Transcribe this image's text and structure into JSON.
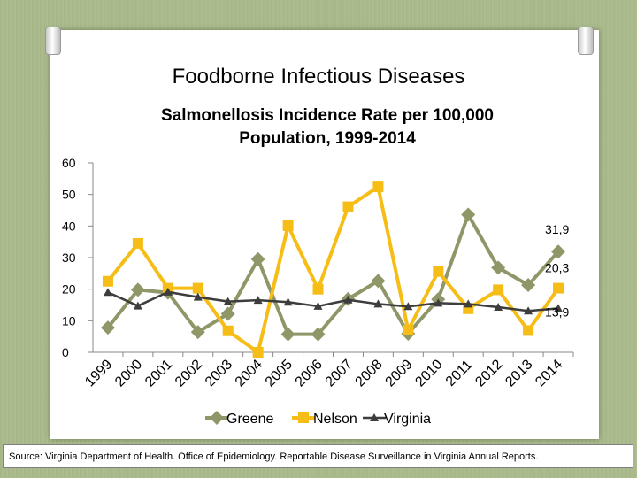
{
  "title": "Foodborne Infectious Diseases",
  "colors": {
    "greene": "#8f9668",
    "nelson": "#f6bd16",
    "virginia": "#3d3d3d",
    "axis": "#888888"
  },
  "chart_data": {
    "type": "line",
    "title": "Salmonellosis Incidence Rate per 100,000\nPopulation, 1999-2014",
    "xlabel": "",
    "ylabel": "",
    "ylim": [
      0,
      60
    ],
    "yticks": [
      "0",
      "10",
      "20",
      "30",
      "40",
      "50",
      "60"
    ],
    "categories": [
      "1999",
      "2000",
      "2001",
      "2002",
      "2003",
      "2004",
      "2005",
      "2006",
      "2007",
      "2008",
      "2009",
      "2010",
      "2011",
      "2012",
      "2013",
      "2014"
    ],
    "series": [
      {
        "name": "Greene",
        "marker": "diamond",
        "values": [
          7.8,
          19.8,
          18.9,
          6.4,
          12.2,
          29.5,
          5.7,
          5.7,
          16.9,
          22.6,
          5.9,
          16.8,
          43.6,
          26.8,
          21.3,
          31.9
        ]
      },
      {
        "name": "Nelson",
        "marker": "square",
        "values": [
          22.5,
          34.5,
          20.3,
          20.3,
          6.8,
          0,
          40.1,
          20.0,
          46.1,
          52.4,
          7.0,
          25.6,
          13.8,
          19.8,
          6.9,
          20.3
        ]
      },
      {
        "name": "Virginia",
        "marker": "triangle",
        "values": [
          19.0,
          14.7,
          19.1,
          17.5,
          16.1,
          16.5,
          15.9,
          14.6,
          16.6,
          15.3,
          14.5,
          15.6,
          15.3,
          14.3,
          13.1,
          13.9
        ]
      }
    ],
    "data_labels": [
      {
        "series": "Greene",
        "text": "31,9"
      },
      {
        "series": "Nelson",
        "text": "20,3"
      },
      {
        "series": "Virginia",
        "text": "13,9"
      }
    ],
    "legend": [
      "Greene",
      "Nelson",
      "Virginia"
    ],
    "legend_position": "bottom",
    "grid": false
  },
  "source_note": "Source: Virginia Department of Health. Office of Epidemiology. Reportable Disease Surveillance in Virginia Annual Reports."
}
